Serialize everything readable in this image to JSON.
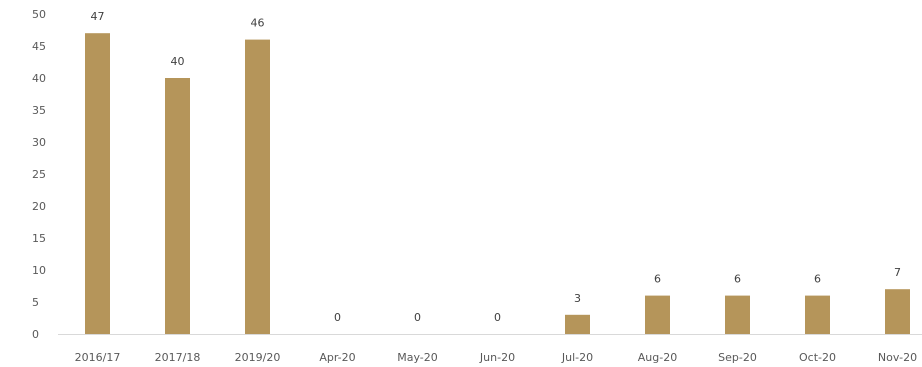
{
  "chart_data": {
    "type": "bar",
    "title": "",
    "xlabel": "",
    "ylabel": "",
    "categories": [
      "2016/17",
      "2017/18",
      "2019/20",
      "Apr-20",
      "May-20",
      "Jun-20",
      "Jul-20",
      "Aug-20",
      "Sep-20",
      "Oct-20",
      "Nov-20"
    ],
    "values": [
      47,
      40,
      46,
      0,
      0,
      0,
      3,
      6,
      6,
      6,
      7
    ],
    "data_labels": [
      "47",
      "40",
      "46",
      "0",
      "0",
      "0",
      "3",
      "6",
      "6",
      "6",
      "7"
    ],
    "ylim": [
      0,
      50
    ],
    "y_ticks": [
      "0",
      "5",
      "10",
      "15",
      "20",
      "25",
      "30",
      "35",
      "40",
      "45",
      "50"
    ],
    "grid": false,
    "legend": "none",
    "bar_color": "#b5955a",
    "axis_color": "#d9d9d9"
  }
}
